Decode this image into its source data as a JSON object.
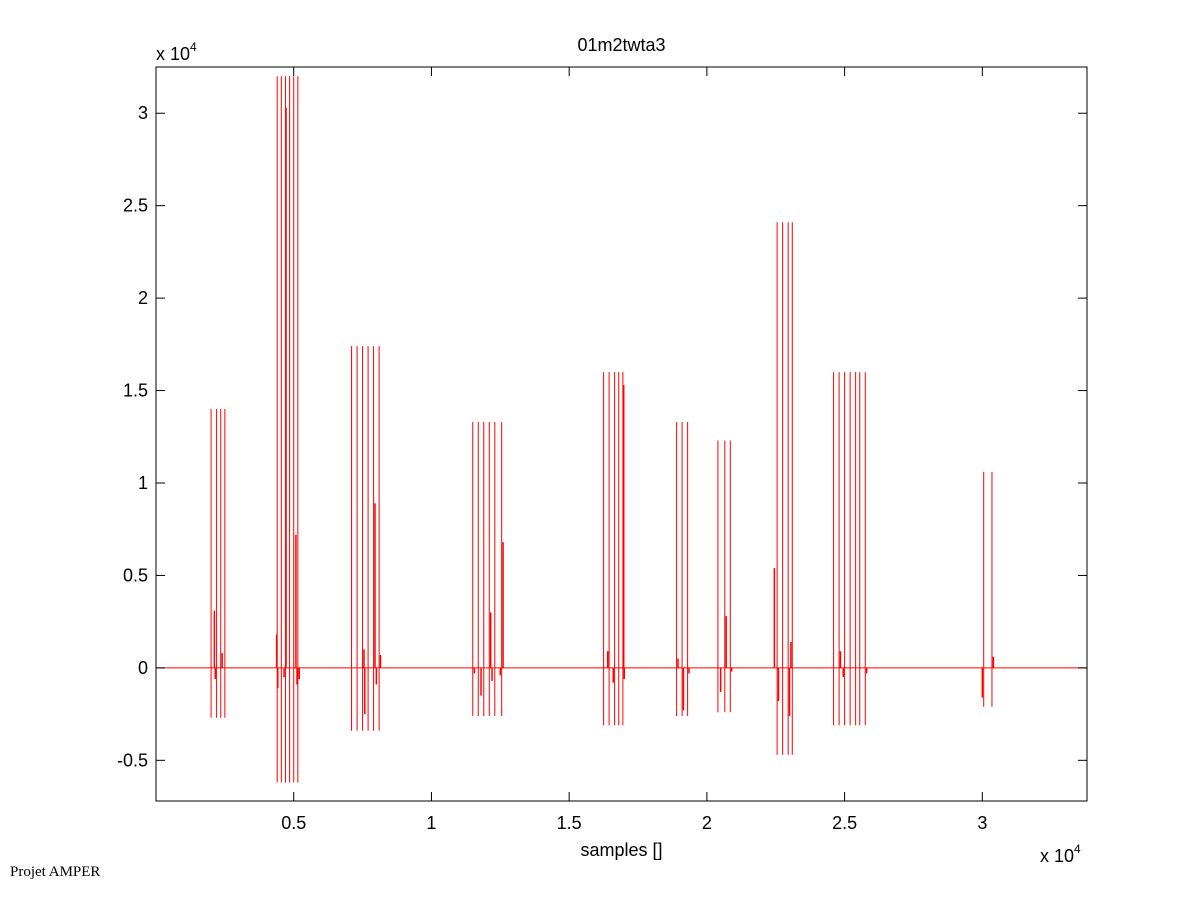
{
  "footer": "Projet AMPER",
  "chart_data": {
    "type": "line",
    "title": "01m2twta3",
    "xlabel": "samples []",
    "ylabel": "",
    "x_multiplier": "x 10",
    "x_exponent": "4",
    "y_multiplier": "x 10",
    "y_exponent": "4",
    "xlim": [
      0,
      33800
    ],
    "ylim": [
      -7200,
      32500
    ],
    "xticks": [
      5000,
      10000,
      15000,
      20000,
      25000,
      30000
    ],
    "xtick_labels": [
      "0.5",
      "1",
      "1.5",
      "2",
      "2.5",
      "3"
    ],
    "yticks": [
      -5000,
      0,
      5000,
      10000,
      15000,
      20000,
      25000,
      30000
    ],
    "ytick_labels": [
      "-0.5",
      "0",
      "0.5",
      "1",
      "1.5",
      "2",
      "2.5",
      "3"
    ],
    "line_color": "#ff0000",
    "grid": false,
    "baseline": 0,
    "series": [
      {
        "bursts": [
          {
            "min": -2700,
            "max": 14000,
            "x": [
              2000,
              2200,
              2350,
              2500
            ]
          },
          {
            "min": -6200,
            "max": 32000,
            "x": [
              4400,
              4550,
              4700,
              4850,
              5000,
              5150
            ]
          },
          {
            "min": -3400,
            "max": 17400,
            "x": [
              7100,
              7300,
              7500,
              7700,
              7900,
              8100
            ]
          },
          {
            "min": -2600,
            "max": 13300,
            "x": [
              11500,
              11700,
              11900,
              12100,
              12300,
              12550
            ]
          },
          {
            "min": -3100,
            "max": 16000,
            "x": [
              16250,
              16450,
              16650,
              16800,
              16950
            ]
          },
          {
            "min": -2600,
            "max": 13300,
            "x": [
              18900,
              19100,
              19300
            ]
          },
          {
            "min": -2400,
            "max": 12300,
            "x": [
              20400,
              20650,
              20850
            ]
          },
          {
            "min": -4700,
            "max": 24100,
            "x": [
              22550,
              22750,
              22950,
              23100
            ]
          },
          {
            "min": -3100,
            "max": 16000,
            "x": [
              24600,
              24800,
              25000,
              25200,
              25400,
              25550,
              25750
            ]
          },
          {
            "min": -2100,
            "max": 10600,
            "x": [
              30050,
              30350
            ]
          }
        ],
        "spikes": [
          {
            "x": 2120,
            "y": 3100
          },
          {
            "x": 2150,
            "y": -600
          },
          {
            "x": 2400,
            "y": 800
          },
          {
            "x": 4380,
            "y": 1800
          },
          {
            "x": 4420,
            "y": -1100
          },
          {
            "x": 4720,
            "y": 30300
          },
          {
            "x": 4650,
            "y": -500
          },
          {
            "x": 5080,
            "y": 7200
          },
          {
            "x": 5120,
            "y": -900
          },
          {
            "x": 5200,
            "y": -600
          },
          {
            "x": 7550,
            "y": 1000
          },
          {
            "x": 7580,
            "y": -2500
          },
          {
            "x": 7950,
            "y": 8900
          },
          {
            "x": 8000,
            "y": -900
          },
          {
            "x": 8150,
            "y": 700
          },
          {
            "x": 11560,
            "y": -300
          },
          {
            "x": 11800,
            "y": -1500
          },
          {
            "x": 12150,
            "y": 3000
          },
          {
            "x": 12200,
            "y": -700
          },
          {
            "x": 12600,
            "y": 6800
          },
          {
            "x": 12500,
            "y": -400
          },
          {
            "x": 16400,
            "y": 900
          },
          {
            "x": 16600,
            "y": -800
          },
          {
            "x": 16980,
            "y": 15300
          },
          {
            "x": 17000,
            "y": -600
          },
          {
            "x": 18950,
            "y": 500
          },
          {
            "x": 19150,
            "y": -2300
          },
          {
            "x": 19350,
            "y": -300
          },
          {
            "x": 20500,
            "y": -1300
          },
          {
            "x": 20700,
            "y": 2800
          },
          {
            "x": 20900,
            "y": -200
          },
          {
            "x": 22450,
            "y": 5400
          },
          {
            "x": 22600,
            "y": -1800
          },
          {
            "x": 23000,
            "y": -2600
          },
          {
            "x": 23050,
            "y": 1400
          },
          {
            "x": 24850,
            "y": 900
          },
          {
            "x": 24950,
            "y": -500
          },
          {
            "x": 25800,
            "y": -300
          },
          {
            "x": 30000,
            "y": -1600
          },
          {
            "x": 30400,
            "y": 600
          }
        ]
      }
    ]
  }
}
